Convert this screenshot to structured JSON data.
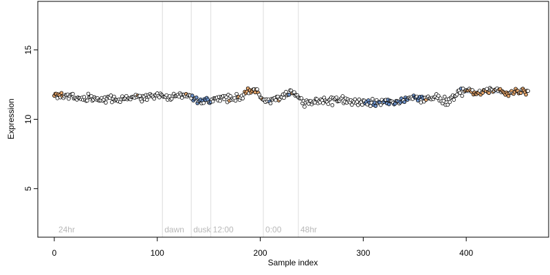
{
  "chart_data": {
    "type": "scatter",
    "xlabel": "Sample index",
    "ylabel": "Expression",
    "xlim": [
      -16,
      480
    ],
    "ylim": [
      1.5,
      18.5
    ],
    "x_ticks": [
      0,
      100,
      200,
      300,
      400
    ],
    "y_ticks": [
      5,
      10,
      15
    ],
    "grid": false,
    "annotations": [
      {
        "label": "24hr",
        "x": 2,
        "line": false
      },
      {
        "label": "dawn",
        "x": 105,
        "line": true
      },
      {
        "label": "dusk",
        "x": 133,
        "line": true
      },
      {
        "label": "12:00",
        "x": 152,
        "line": true
      },
      {
        "label": "0:00",
        "x": 203,
        "line": true
      },
      {
        "label": "48hr",
        "x": 237,
        "line": true
      }
    ],
    "point_colors": {
      "default": "#ffffff",
      "high": "#e8a86e",
      "low": "#6f94cc"
    },
    "band_color": "#b0c4e0",
    "knots": [
      [
        0,
        11.8
      ],
      [
        10,
        11.7
      ],
      [
        20,
        11.6
      ],
      [
        30,
        11.5
      ],
      [
        40,
        11.5
      ],
      [
        50,
        11.4
      ],
      [
        60,
        11.5
      ],
      [
        70,
        11.5
      ],
      [
        80,
        11.6
      ],
      [
        90,
        11.6
      ],
      [
        100,
        11.7
      ],
      [
        110,
        11.6
      ],
      [
        120,
        11.7
      ],
      [
        130,
        11.7
      ],
      [
        140,
        11.4
      ],
      [
        150,
        11.4
      ],
      [
        160,
        11.5
      ],
      [
        170,
        11.6
      ],
      [
        180,
        11.7
      ],
      [
        190,
        12.1
      ],
      [
        197,
        12.0
      ],
      [
        205,
        11.3
      ],
      [
        215,
        11.5
      ],
      [
        225,
        11.8
      ],
      [
        232,
        11.9
      ],
      [
        240,
        11.3
      ],
      [
        250,
        11.2
      ],
      [
        260,
        11.4
      ],
      [
        270,
        11.3
      ],
      [
        280,
        11.4
      ],
      [
        290,
        11.3
      ],
      [
        300,
        11.2
      ],
      [
        310,
        11.1
      ],
      [
        320,
        11.3
      ],
      [
        330,
        11.2
      ],
      [
        340,
        11.4
      ],
      [
        350,
        11.5
      ],
      [
        360,
        11.5
      ],
      [
        370,
        11.6
      ],
      [
        380,
        11.3
      ],
      [
        390,
        11.8
      ],
      [
        400,
        12.0
      ],
      [
        410,
        11.9
      ],
      [
        420,
        12.0
      ],
      [
        430,
        12.1
      ],
      [
        440,
        11.9
      ],
      [
        450,
        12.0
      ],
      [
        460,
        12.1
      ]
    ],
    "bands": [
      {
        "x": [
          0,
          8
        ],
        "y": [
          11.65,
          11.85
        ]
      },
      {
        "x": [
          133,
          152
        ],
        "y": [
          11.3,
          11.6
        ]
      },
      {
        "x": [
          185,
          198
        ],
        "y": [
          11.9,
          12.1
        ]
      },
      {
        "x": [
          302,
          338
        ],
        "y": [
          11.1,
          11.4
        ]
      },
      {
        "x": [
          340,
          360
        ],
        "y": [
          11.4,
          11.6
        ]
      },
      {
        "x": [
          398,
          460
        ],
        "y": [
          11.85,
          12.05
        ]
      }
    ],
    "n_points": 461,
    "noise": 0.18
  }
}
